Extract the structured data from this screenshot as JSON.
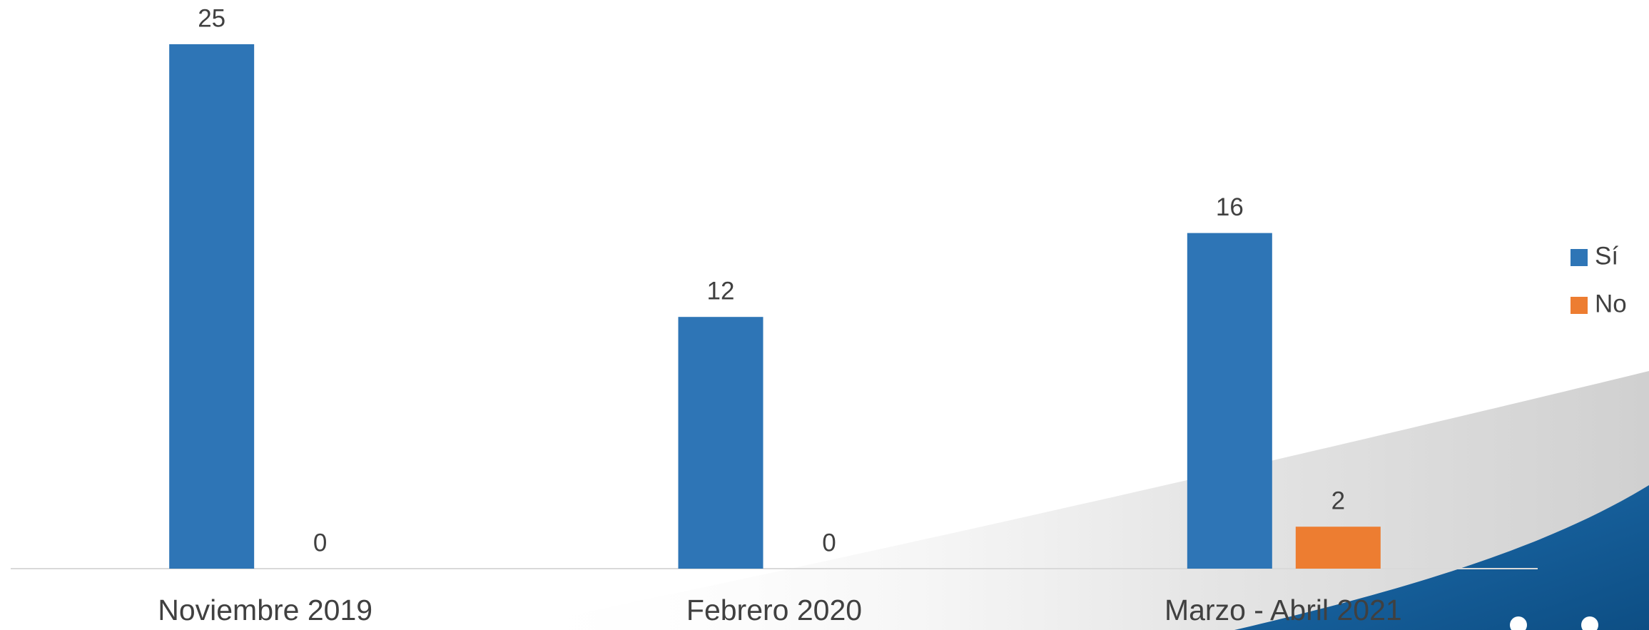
{
  "chart_data": {
    "type": "bar",
    "categories": [
      "Noviembre 2019",
      "Febrero 2020",
      "Marzo - Abril 2021"
    ],
    "series": [
      {
        "name": "Sí",
        "color": "#2e75b6",
        "values": [
          25,
          12,
          16
        ]
      },
      {
        "name": "No",
        "color": "#ed7d31",
        "values": [
          0,
          0,
          2
        ]
      }
    ],
    "legend": "right"
  }
}
